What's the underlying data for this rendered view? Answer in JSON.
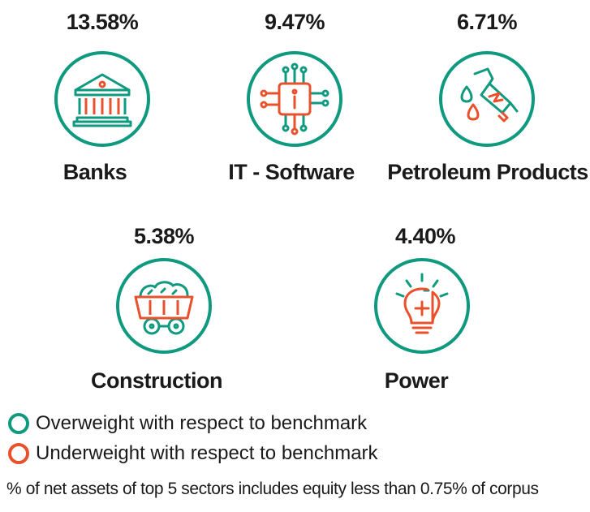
{
  "sectors": [
    {
      "name": "Banks",
      "percent": "13.58%",
      "icon": "bank-icon",
      "status": "overweight"
    },
    {
      "name": "IT - Software",
      "percent": "9.47%",
      "icon": "chip-icon",
      "status": "overweight"
    },
    {
      "name": "Petroleum Products",
      "percent": "6.71%",
      "icon": "fuel-nozzle-icon",
      "status": "overweight"
    },
    {
      "name": "Construction",
      "percent": "5.38%",
      "icon": "cart-icon",
      "status": "overweight"
    },
    {
      "name": "Power",
      "percent": "4.40%",
      "icon": "bulb-icon",
      "status": "overweight"
    }
  ],
  "legend": [
    {
      "label": "Overweight with respect to benchmark",
      "color": "#0f9a80"
    },
    {
      "label": "Underweight with respect to benchmark",
      "color": "#e8512c"
    }
  ],
  "footnote": "% of net assets of top 5 sectors includes equity less than 0.75% of corpus",
  "colors": {
    "green": "#0f9a80",
    "orange": "#e8512c",
    "text": "#1a1a1a"
  }
}
